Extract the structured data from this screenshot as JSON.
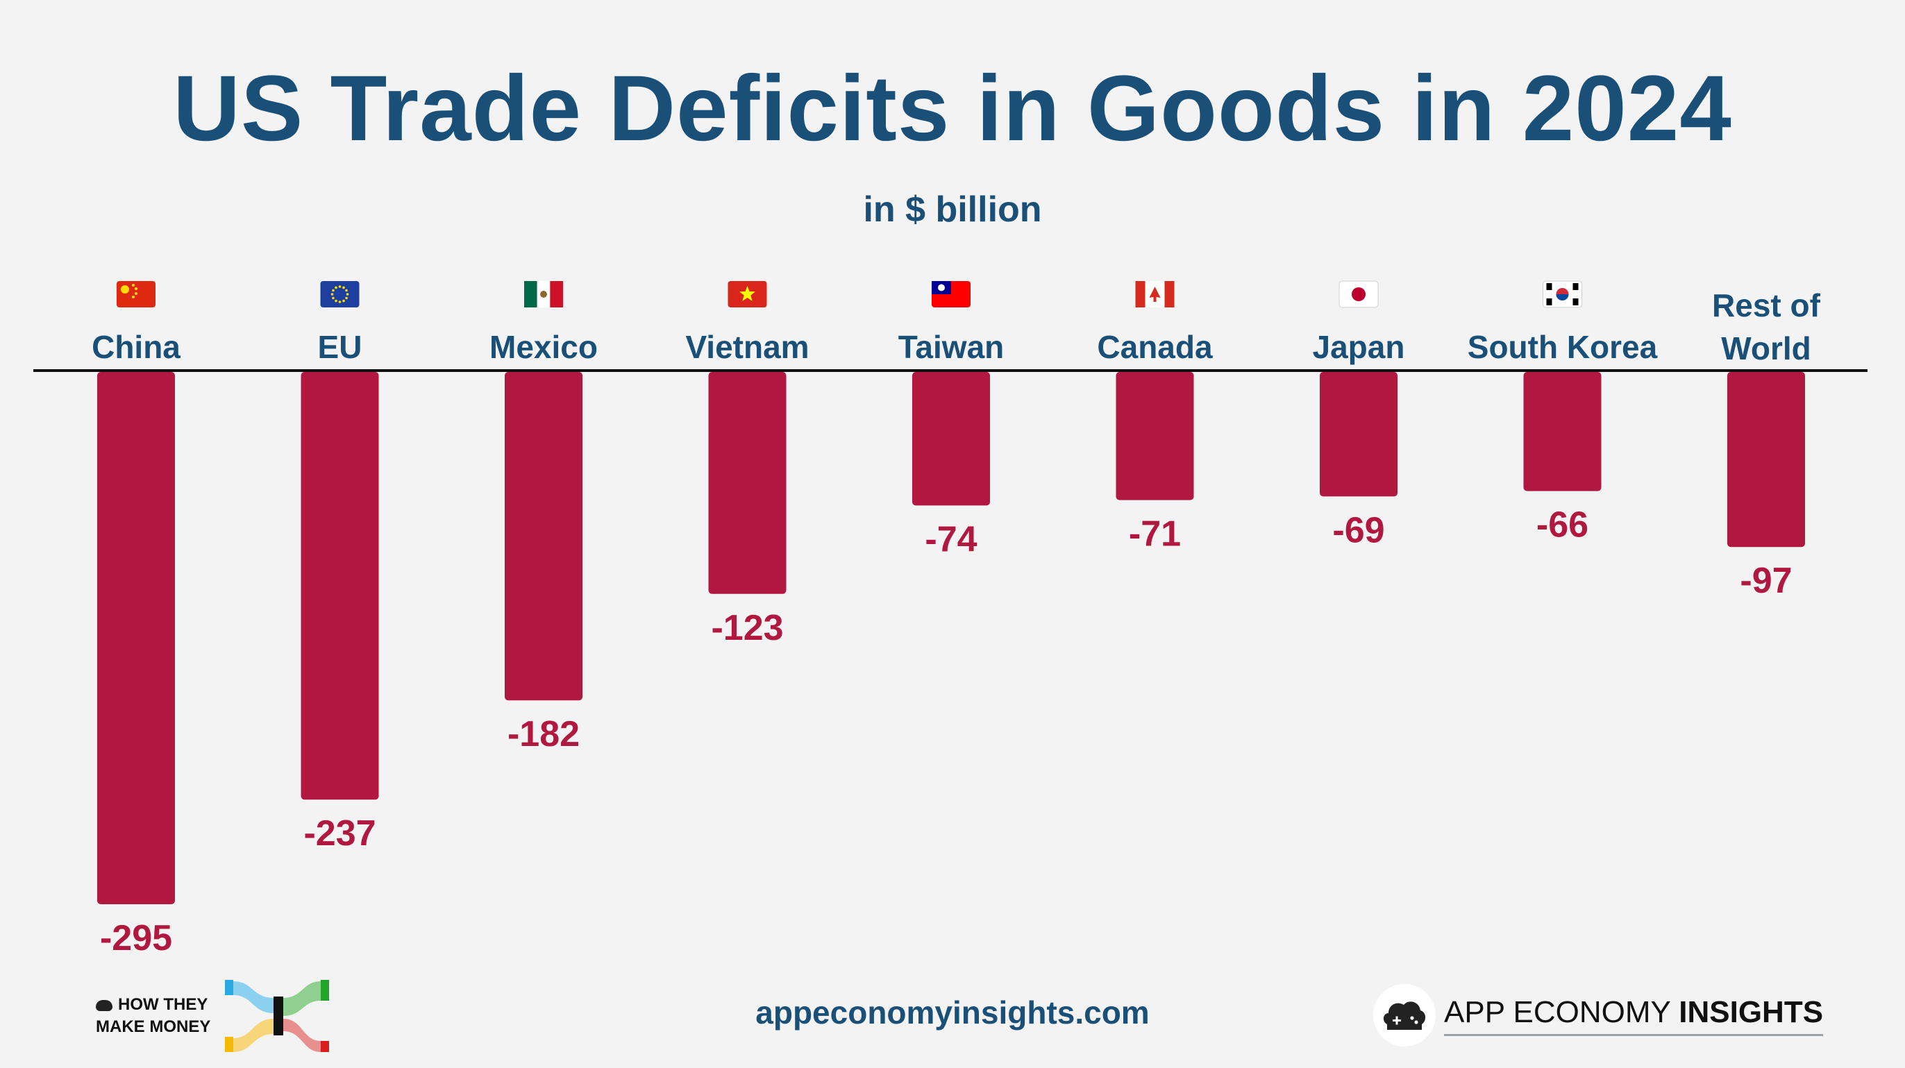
{
  "title": "US Trade Deficits in Goods in 2024",
  "subtitle": "in $ billion",
  "footer": {
    "url": "appeconomyinsights.com",
    "brand_left_line1": "HOW THEY",
    "brand_left_line2": "MAKE MONEY",
    "brand_right_regular": "APP ECONOMY ",
    "brand_right_bold": "INSIGHTS"
  },
  "colors": {
    "bar": "#b0183f",
    "label": "#1a4f78",
    "axis": "#111111"
  },
  "chart_data": {
    "type": "bar",
    "title": "US Trade Deficits in Goods in 2024",
    "subtitle": "in $ billion",
    "xlabel": "",
    "ylabel": "",
    "ylim": [
      -300,
      0
    ],
    "grid": false,
    "categories": [
      "China",
      "EU",
      "Mexico",
      "Vietnam",
      "Taiwan",
      "Canada",
      "Japan",
      "South Korea",
      "Rest of World"
    ],
    "category_flags": [
      "china-flag-icon",
      "eu-flag-icon",
      "mexico-flag-icon",
      "vietnam-flag-icon",
      "taiwan-flag-icon",
      "canada-flag-icon",
      "japan-flag-icon",
      "south-korea-flag-icon",
      ""
    ],
    "values": [
      -295,
      -237,
      -182,
      -123,
      -74,
      -71,
      -69,
      -66,
      -97
    ]
  }
}
